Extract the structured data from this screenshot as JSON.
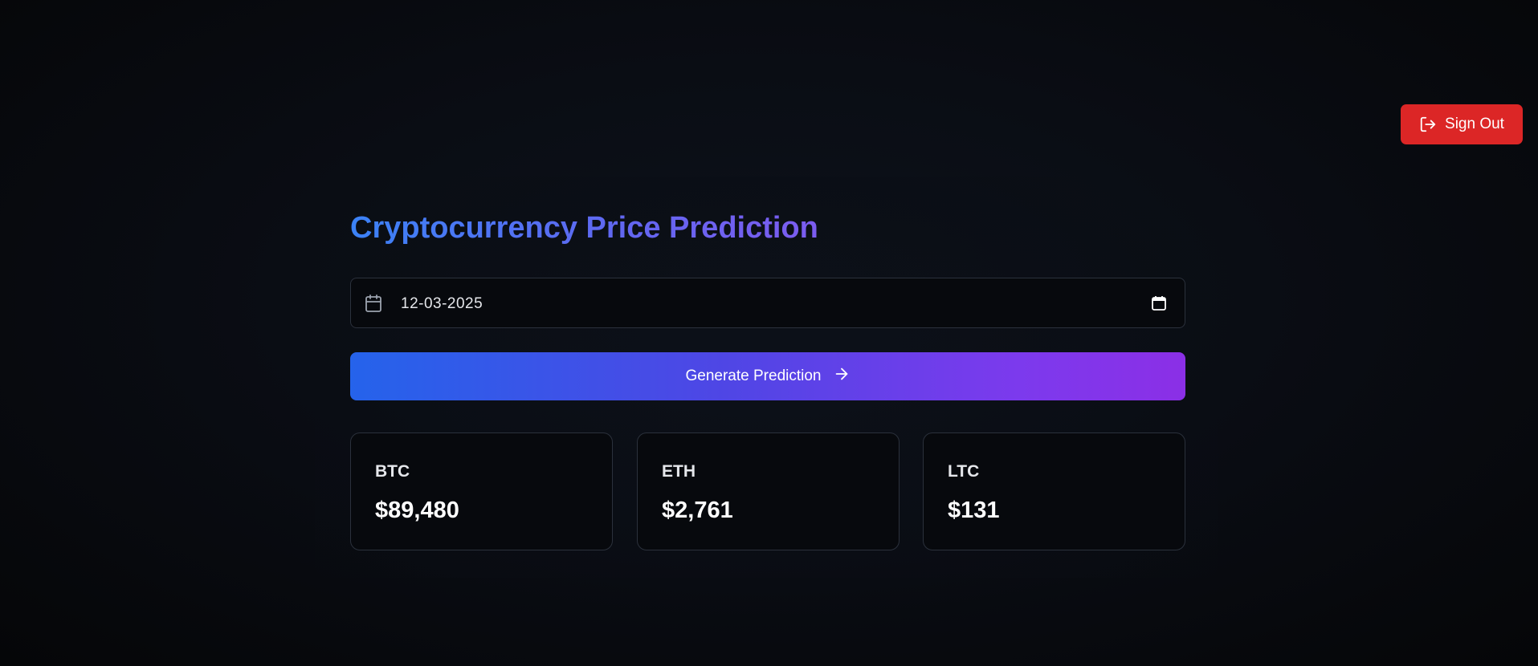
{
  "header": {
    "signout_label": "Sign Out",
    "signout_icon": "log-out-icon"
  },
  "main": {
    "title": "Cryptocurrency Price Prediction",
    "date_input": {
      "value": "12-03-2025",
      "leading_icon": "calendar-icon",
      "picker_icon": "calendar-picker-icon"
    },
    "generate_label": "Generate Prediction",
    "generate_icon": "arrow-right-icon",
    "cards": [
      {
        "symbol": "BTC",
        "price": "$89,480"
      },
      {
        "symbol": "ETH",
        "price": "$2,761"
      },
      {
        "symbol": "LTC",
        "price": "$131"
      }
    ]
  },
  "colors": {
    "background": "#0a0d14",
    "signout": "#dc2626",
    "gradient_start": "#2563eb",
    "gradient_end": "#8b2fe6",
    "card_border": "#2b313c"
  }
}
